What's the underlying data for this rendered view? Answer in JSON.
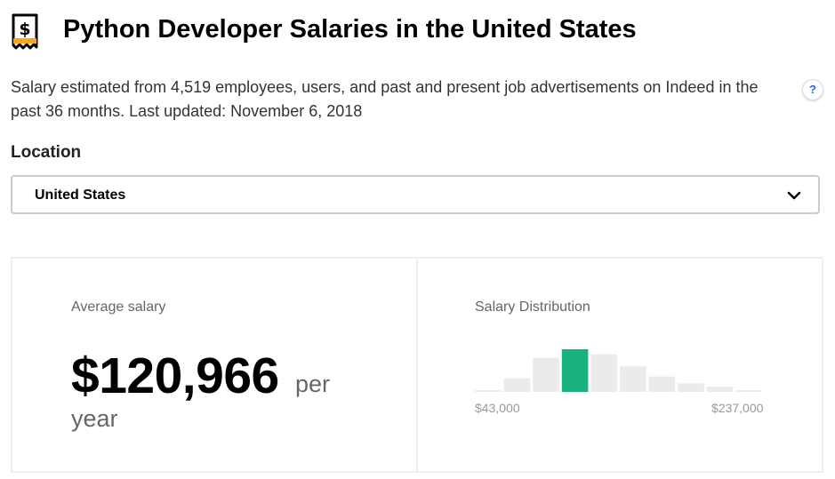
{
  "header": {
    "title": "Python Developer Salaries in the United States",
    "logo_icon": "salary-tag-icon"
  },
  "summary": {
    "text": "Salary estimated from 4,519 employees, users, and past and present job advertisements on Indeed in the past 36 months. Last updated: November 6, 2018",
    "help_label": "?"
  },
  "location": {
    "label": "Location",
    "selected": "United States"
  },
  "average": {
    "label": "Average salary",
    "value": "$120,966",
    "per": "per",
    "period": "year"
  },
  "distribution": {
    "label": "Salary Distribution",
    "min_label": "$43,000",
    "max_label": "$237,000",
    "highlight_color": "#1ab181",
    "bar_color": "#ebebeb",
    "chart_data": {
      "type": "bar",
      "title": "Salary Distribution",
      "x_range": [
        43000,
        237000
      ],
      "values": [
        1,
        8,
        20,
        25,
        22,
        15,
        9,
        5,
        3,
        1
      ],
      "highlighted_index": 3
    }
  }
}
